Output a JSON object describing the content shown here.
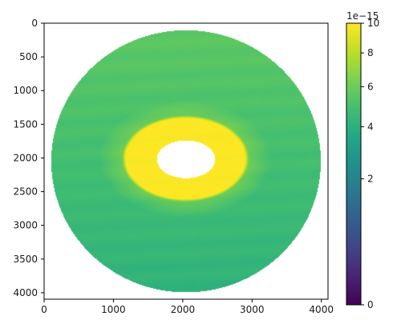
{
  "chart_data": {
    "type": "heatmap",
    "title": "",
    "xlabel": "",
    "ylabel": "",
    "xlim": [
      0,
      4096
    ],
    "ylim": [
      4096,
      0
    ],
    "x_ticks": [
      "0",
      "1000",
      "2000",
      "3000",
      "4000"
    ],
    "x_tick_values": [
      0,
      1000,
      2000,
      3000,
      4000
    ],
    "y_ticks": [
      "0",
      "500",
      "1000",
      "1500",
      "2000",
      "2500",
      "3000",
      "3500",
      "4000"
    ],
    "y_tick_values": [
      0,
      500,
      1000,
      1500,
      2000,
      2500,
      3000,
      3500,
      4000
    ],
    "grid": false,
    "colormap": "viridis",
    "colorbar": {
      "scale": "power",
      "range": [
        0,
        10
      ],
      "exponent_label": "1e−15",
      "ticks": [
        "0",
        "2",
        "4",
        "6",
        "8",
        "10"
      ],
      "tick_values": [
        0,
        2,
        4,
        6,
        8,
        10
      ]
    },
    "image": {
      "shape": "disk",
      "center": [
        2048,
        2050
      ],
      "disk_radius": 1945,
      "saturated_ellipse": {
        "center": [
          2040,
          2010
        ],
        "radius_x": 860,
        "radius_y": 600,
        "value": 10
      },
      "hole_no_data": {
        "center": [
          2048,
          2020
        ],
        "radius_x": 420,
        "radius_y": 280
      },
      "value_at_ellipse_edge": 6.2,
      "value_at_disk_edge": 4.8,
      "value_upper_region": 5.6,
      "value_lower_region": 4.1
    }
  }
}
